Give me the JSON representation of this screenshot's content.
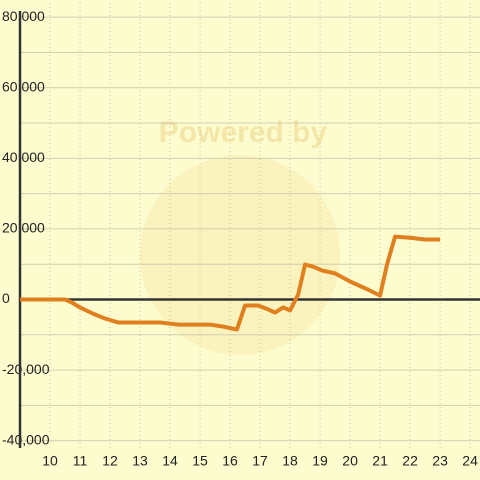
{
  "chart_data": {
    "type": "line",
    "watermark": "Powered by",
    "x": [
      9,
      10.5,
      10.73,
      11,
      11.5,
      11.83,
      12.27,
      13.67,
      14.27,
      15.33,
      15.73,
      16.23,
      16.5,
      16.93,
      17.27,
      17.5,
      17.77,
      18,
      18.27,
      18.5,
      18.77,
      19.07,
      19.5,
      20,
      20.6,
      21,
      21.23,
      21.5,
      22,
      22.5,
      23
    ],
    "series": [
      {
        "color": "#e07f20",
        "values": [
          0,
          0,
          -850,
          -2260,
          -4250,
          -5380,
          -6500,
          -6500,
          -7100,
          -7100,
          -7600,
          -8500,
          -1700,
          -1700,
          -2800,
          -3700,
          -2260,
          -3100,
          1400,
          9900,
          9300,
          8200,
          7400,
          5100,
          2800,
          1100,
          9900,
          17800,
          17500,
          17000,
          17000
        ]
      }
    ],
    "xlim": [
      9,
      24.33
    ],
    "xticks": [
      10,
      11,
      12,
      13,
      14,
      15,
      16,
      17,
      18,
      19,
      20,
      21,
      22,
      23,
      24
    ],
    "ylim": [
      -50000,
      84000
    ],
    "yticks": [
      {
        "value": -40000,
        "label": "-40,000"
      },
      {
        "value": -20000,
        "label": "-20,000"
      },
      0,
      {
        "value": 20000,
        "label": "20,000"
      },
      {
        "value": 40000,
        "label": "40,000"
      },
      {
        "value": 60000,
        "label": "60,000"
      },
      {
        "value": 80000,
        "label": "80,000"
      }
    ],
    "y_minor_ticks": [
      -30000,
      -10000,
      10000,
      30000,
      50000,
      70000
    ],
    "grid": true
  }
}
